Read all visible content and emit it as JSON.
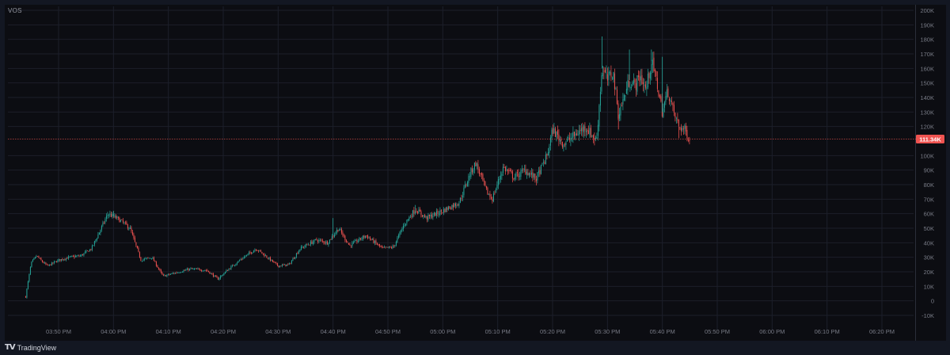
{
  "symbol": "VOS",
  "brand": {
    "logo": "TV",
    "name": "TradingView"
  },
  "colors": {
    "up": "#26a69a",
    "down": "#ef5350",
    "price_line": "#ef5350",
    "grid": "#1c1f2a",
    "axis_text": "#787b86",
    "background": "#0c0d12"
  },
  "chart_data": {
    "type": "candlestick",
    "title": "",
    "xlabel": "",
    "ylabel": "",
    "ylim": [
      -10000,
      200000
    ],
    "y_ticks": [
      {
        "value": 200000,
        "label": "200K"
      },
      {
        "value": 190000,
        "label": "190K"
      },
      {
        "value": 180000,
        "label": "180K"
      },
      {
        "value": 170000,
        "label": "170K"
      },
      {
        "value": 160000,
        "label": "160K"
      },
      {
        "value": 150000,
        "label": "150K"
      },
      {
        "value": 140000,
        "label": "140K"
      },
      {
        "value": 130000,
        "label": "130K"
      },
      {
        "value": 120000,
        "label": "120K"
      },
      {
        "value": 100000,
        "label": "100K"
      },
      {
        "value": 90000,
        "label": "90K"
      },
      {
        "value": 80000,
        "label": "80K"
      },
      {
        "value": 70000,
        "label": "70K"
      },
      {
        "value": 60000,
        "label": "60K"
      },
      {
        "value": 50000,
        "label": "50K"
      },
      {
        "value": 40000,
        "label": "40K"
      },
      {
        "value": 30000,
        "label": "30K"
      },
      {
        "value": 20000,
        "label": "20K"
      },
      {
        "value": 10000,
        "label": "10K"
      },
      {
        "value": 0,
        "label": "0"
      },
      {
        "value": -10000,
        "label": "-10K"
      }
    ],
    "x_ticks": [
      "03:50 PM",
      "04:00 PM",
      "04:10 PM",
      "04:20 PM",
      "04:30 PM",
      "04:40 PM",
      "04:50 PM",
      "05:00 PM",
      "05:10 PM",
      "05:20 PM",
      "05:30 PM",
      "05:40 PM",
      "05:50 PM",
      "06:00 PM",
      "06:10 PM",
      "06:20 PM"
    ],
    "x_range": [
      "03:45 PM",
      "06:25 PM"
    ],
    "last_price": {
      "value": 111340,
      "label": "111.34K"
    },
    "path": [
      [
        "03:44 PM",
        3000
      ],
      [
        "03:45 PM",
        26000
      ],
      [
        "03:46 PM",
        31000
      ],
      [
        "03:47 PM",
        27000
      ],
      [
        "03:48 PM",
        24000
      ],
      [
        "03:50 PM",
        28000
      ],
      [
        "03:52 PM",
        30000
      ],
      [
        "03:54 PM",
        31000
      ],
      [
        "03:56 PM",
        36000
      ],
      [
        "03:58 PM",
        52000
      ],
      [
        "03:59 PM",
        60000
      ],
      [
        "04:01 PM",
        56000
      ],
      [
        "04:03 PM",
        50000
      ],
      [
        "04:05 PM",
        28000
      ],
      [
        "04:07 PM",
        30000
      ],
      [
        "04:09 PM",
        17000
      ],
      [
        "04:11 PM",
        19000
      ],
      [
        "04:14 PM",
        22000
      ],
      [
        "04:17 PM",
        21000
      ],
      [
        "04:19 PM",
        15000
      ],
      [
        "04:21 PM",
        22000
      ],
      [
        "04:23 PM",
        28000
      ],
      [
        "04:26 PM",
        36000
      ],
      [
        "04:28 PM",
        30000
      ],
      [
        "04:30 PM",
        24000
      ],
      [
        "04:32 PM",
        25000
      ],
      [
        "04:34 PM",
        36000
      ],
      [
        "04:37 PM",
        42000
      ],
      [
        "04:39 PM",
        40000
      ],
      [
        "04:41 PM",
        50000
      ],
      [
        "04:43 PM",
        38000
      ],
      [
        "04:46 PM",
        45000
      ],
      [
        "04:49 PM",
        36000
      ],
      [
        "04:51 PM",
        37000
      ],
      [
        "04:53 PM",
        53000
      ],
      [
        "04:55 PM",
        63000
      ],
      [
        "04:57 PM",
        57000
      ],
      [
        "05:00 PM",
        62000
      ],
      [
        "05:03 PM",
        68000
      ],
      [
        "05:05 PM",
        88000
      ],
      [
        "05:06 PM",
        95000
      ],
      [
        "05:08 PM",
        75000
      ],
      [
        "05:09 PM",
        70000
      ],
      [
        "05:11 PM",
        92000
      ],
      [
        "05:13 PM",
        85000
      ],
      [
        "05:15 PM",
        90000
      ],
      [
        "05:17 PM",
        84000
      ],
      [
        "05:19 PM",
        100000
      ],
      [
        "05:20 PM",
        118000
      ],
      [
        "05:22 PM",
        108000
      ],
      [
        "05:24 PM",
        114000
      ],
      [
        "05:26 PM",
        120000
      ],
      [
        "05:28 PM",
        110000
      ],
      [
        "05:29 PM",
        160000
      ],
      [
        "05:30 PM",
        152000
      ],
      [
        "05:31 PM",
        158000
      ],
      [
        "05:32 PM",
        128000
      ],
      [
        "05:33 PM",
        140000
      ],
      [
        "05:34 PM",
        152000
      ],
      [
        "05:35 PM",
        148000
      ],
      [
        "05:36 PM",
        155000
      ],
      [
        "05:37 PM",
        145000
      ],
      [
        "05:38 PM",
        165000
      ],
      [
        "05:39 PM",
        150000
      ],
      [
        "05:40 PM",
        130000
      ],
      [
        "05:41 PM",
        145000
      ],
      [
        "05:42 PM",
        130000
      ],
      [
        "05:43 PM",
        120000
      ],
      [
        "05:44 PM",
        118000
      ],
      [
        "05:45 PM",
        111340
      ]
    ],
    "spikes": [
      [
        "05:29 PM",
        182000
      ],
      [
        "05:34 PM",
        173000
      ],
      [
        "05:38 PM",
        173000
      ],
      [
        "05:40 PM",
        168000
      ],
      [
        "05:32 PM",
        118000
      ],
      [
        "05:43 PM",
        112000
      ],
      [
        "04:55 PM",
        66000
      ],
      [
        "04:40 PM",
        57000
      ],
      [
        "04:00 PM",
        62000
      ]
    ]
  }
}
